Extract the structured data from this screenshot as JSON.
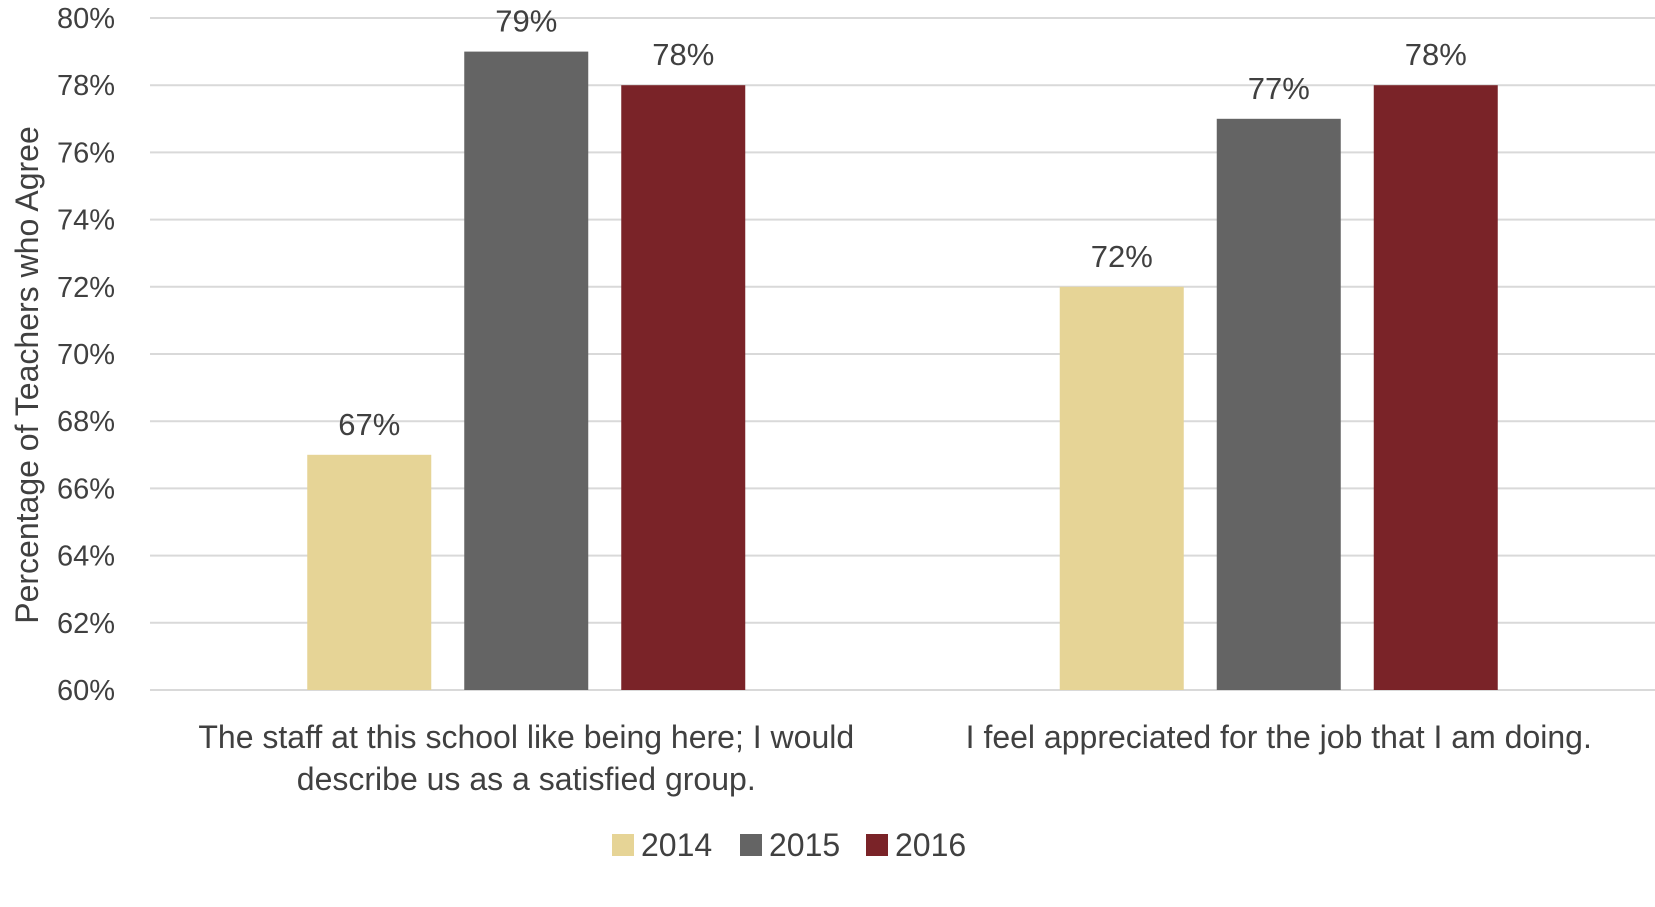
{
  "chart_data": {
    "type": "bar",
    "categories": [
      [
        "The staff at this school like being here; I would",
        "describe us as a satisfied group."
      ],
      [
        "I feel appreciated for the job that I am doing."
      ]
    ],
    "series": [
      {
        "name": "2014",
        "values": [
          67,
          72
        ],
        "labels": [
          "67%",
          "72%"
        ],
        "color": "#E6D496"
      },
      {
        "name": "2015",
        "values": [
          79,
          77
        ],
        "labels": [
          "79%",
          "77%"
        ],
        "color": "#646464"
      },
      {
        "name": "2016",
        "values": [
          78,
          78
        ],
        "labels": [
          "78%",
          "78%"
        ],
        "color": "#7A2328"
      }
    ],
    "ylabel": "Percentage of Teachers who Agree",
    "ylim": [
      60,
      80
    ],
    "yticks": [
      60,
      62,
      64,
      66,
      68,
      70,
      72,
      74,
      76,
      78,
      80
    ],
    "ytick_labels": [
      "60%",
      "62%",
      "64%",
      "66%",
      "68%",
      "70%",
      "72%",
      "74%",
      "76%",
      "78%",
      "80%"
    ],
    "grid": true,
    "legend_position": "bottom",
    "colors": {
      "grid": "#D9D9D9",
      "text": "#404040"
    }
  }
}
